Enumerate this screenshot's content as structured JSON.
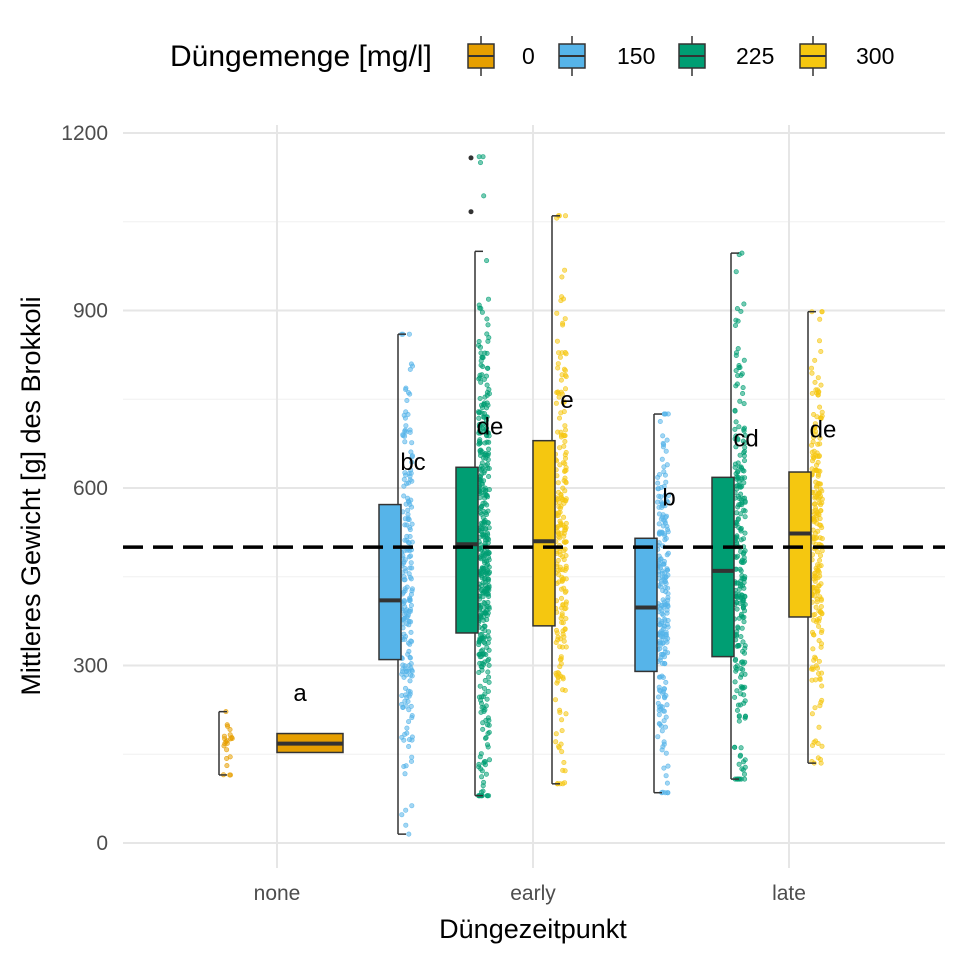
{
  "chart_data": {
    "type": "boxplot",
    "xlabel": "Düngezeitpunkt",
    "ylabel": "Mittleres Gewicht [g] des Brokkoli",
    "ylim": [
      -40,
      1250
    ],
    "yticks": [
      0,
      300,
      600,
      900,
      1200
    ],
    "categories": [
      "none",
      "early",
      "late"
    ],
    "reference_line": 500,
    "legend": {
      "title": "Düngemenge [mg/l]",
      "position": "top",
      "entries": [
        {
          "label": "0",
          "color": "#E69F00"
        },
        {
          "label": "150",
          "color": "#56B4E9"
        },
        {
          "label": "225",
          "color": "#009E73"
        },
        {
          "label": "300",
          "color": "#F5C710"
        }
      ]
    },
    "boxes": [
      {
        "category": "none",
        "dose": "0",
        "min": 115,
        "q1": 153,
        "median": 168,
        "q3": 185,
        "max": 222,
        "label": "a",
        "label_y": 240,
        "n_points": 22,
        "pts_min": 115,
        "pts_max": 222,
        "pts_mu": 165,
        "pts_sd": 28
      },
      {
        "category": "early",
        "dose": "150",
        "min": 15,
        "q1": 310,
        "median": 410,
        "q3": 572,
        "max": 860,
        "label": "bc",
        "label_y": 630,
        "n_points": 210,
        "pts_min": 15,
        "pts_max": 860,
        "pts_mu": 440,
        "pts_sd": 170
      },
      {
        "category": "early",
        "dose": "225",
        "min": 80,
        "q1": 355,
        "median": 505,
        "q3": 635,
        "max": 1000,
        "outliers": [
          1067,
          1158
        ],
        "label": "de",
        "label_y": 690,
        "n_points": 420,
        "pts_min": 80,
        "pts_max": 1160,
        "pts_mu": 495,
        "pts_sd": 200
      },
      {
        "category": "early",
        "dose": "300",
        "min": 100,
        "q1": 367,
        "median": 510,
        "q3": 680,
        "max": 1060,
        "label": "e",
        "label_y": 735,
        "n_points": 230,
        "pts_min": 100,
        "pts_max": 1060,
        "pts_mu": 520,
        "pts_sd": 210
      },
      {
        "category": "late",
        "dose": "150",
        "min": 85,
        "q1": 290,
        "median": 398,
        "q3": 515,
        "max": 725,
        "label": "b",
        "label_y": 570,
        "n_points": 230,
        "pts_min": 85,
        "pts_max": 725,
        "pts_mu": 400,
        "pts_sd": 150
      },
      {
        "category": "late",
        "dose": "225",
        "min": 108,
        "q1": 315,
        "median": 460,
        "q3": 618,
        "max": 997,
        "label": "cd",
        "label_y": 670,
        "n_points": 260,
        "pts_min": 108,
        "pts_max": 997,
        "pts_mu": 470,
        "pts_sd": 200
      },
      {
        "category": "late",
        "dose": "300",
        "min": 135,
        "q1": 382,
        "median": 523,
        "q3": 627,
        "max": 898,
        "label": "de",
        "label_y": 685,
        "n_points": 240,
        "pts_min": 135,
        "pts_max": 898,
        "pts_mu": 510,
        "pts_sd": 170
      }
    ]
  }
}
